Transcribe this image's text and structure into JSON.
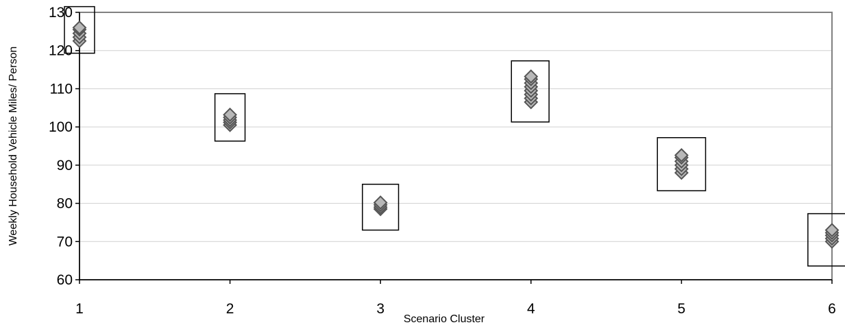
{
  "chart_data": {
    "type": "scatter",
    "title": "",
    "xlabel": "Scenario Cluster",
    "ylabel": "Weekly Household Vehicle Miles/ Person",
    "xlim": [
      1,
      6
    ],
    "ylim": [
      60,
      130
    ],
    "x_ticks": [
      1,
      2,
      3,
      4,
      5,
      6
    ],
    "y_ticks": [
      60,
      70,
      80,
      90,
      100,
      110,
      120,
      130
    ],
    "grid": true,
    "legend": "none",
    "series": [
      {
        "x": [
          1,
          1,
          1,
          1,
          1
        ],
        "y": [
          122.5,
          123.5,
          124.5,
          125.5,
          126.0
        ],
        "marker": "diamond"
      },
      {
        "x": [
          2,
          2,
          2,
          2,
          2
        ],
        "y": [
          100.5,
          101.2,
          101.8,
          102.5,
          103.2
        ],
        "marker": "diamond"
      },
      {
        "x": [
          3,
          3,
          3,
          3
        ],
        "y": [
          78.5,
          79.0,
          79.6,
          80.2
        ],
        "marker": "diamond"
      },
      {
        "x": [
          4,
          4,
          4,
          4,
          4,
          4,
          4,
          4
        ],
        "y": [
          106.5,
          107.5,
          108.5,
          109.5,
          110.5,
          111.5,
          112.5,
          113.2
        ],
        "marker": "diamond"
      },
      {
        "x": [
          5,
          5,
          5,
          5,
          5,
          5
        ],
        "y": [
          88.0,
          89.0,
          90.0,
          91.0,
          92.0,
          92.6
        ],
        "marker": "diamond"
      },
      {
        "x": [
          6,
          6,
          6,
          6,
          6
        ],
        "y": [
          70.0,
          70.8,
          71.6,
          72.3,
          73.0
        ],
        "marker": "diamond"
      }
    ],
    "cluster_boxes": [
      {
        "x_min": 0.9,
        "x_max": 1.1,
        "y_min": 119.3,
        "y_max": 131.5
      },
      {
        "x_min": 1.9,
        "x_max": 2.1,
        "y_min": 96.3,
        "y_max": 108.7
      },
      {
        "x_min": 2.88,
        "x_max": 3.12,
        "y_min": 73.0,
        "y_max": 85.0
      },
      {
        "x_min": 3.87,
        "x_max": 4.12,
        "y_min": 101.3,
        "y_max": 117.3
      },
      {
        "x_min": 4.84,
        "x_max": 5.16,
        "y_min": 83.3,
        "y_max": 97.2
      },
      {
        "x_min": 5.84,
        "x_max": 6.1,
        "y_min": 63.6,
        "y_max": 77.3
      }
    ],
    "colors": {
      "marker_fill": "#b8b8b8",
      "marker_stroke": "#555555",
      "plot_border": "#808080",
      "gridline": "#d0d0d0",
      "box_stroke": "#000000"
    }
  }
}
